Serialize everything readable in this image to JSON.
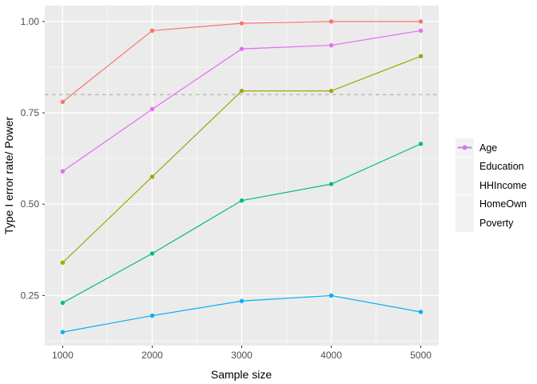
{
  "chart_data": {
    "type": "line",
    "title": "",
    "xlabel": "Sample size",
    "ylabel": "Type I error rate/ Power",
    "x": [
      1000,
      2000,
      3000,
      4000,
      5000
    ],
    "x_tick_labels": [
      "1000",
      "2000",
      "3000",
      "4000",
      "5000"
    ],
    "x_minor_ticks": [
      1500,
      2500,
      3500,
      4500
    ],
    "y_ticks": [
      0.25,
      0.5,
      0.75,
      1.0
    ],
    "y_tick_labels": [
      "0.25",
      "0.50",
      "0.75",
      "1.00"
    ],
    "y_minor_ticks": [
      0.125,
      0.375,
      0.625,
      0.875
    ],
    "xlim": [
      800,
      5200
    ],
    "ylim": [
      0.113,
      1.0435
    ],
    "grid": true,
    "legend_position": "right",
    "reference_line": {
      "y": 0.8,
      "style": "dashed",
      "color": "#A8A8A8"
    },
    "series": [
      {
        "name": "Age",
        "color": "#F8766D",
        "values": [
          0.78,
          0.975,
          0.995,
          1.0,
          1.0
        ]
      },
      {
        "name": "Education",
        "color": "#A3A500",
        "values": [
          0.34,
          0.575,
          0.81,
          0.81,
          0.905
        ]
      },
      {
        "name": "HHIncome",
        "color": "#00BF7D",
        "values": [
          0.23,
          0.365,
          0.51,
          0.555,
          0.665
        ]
      },
      {
        "name": "HomeOwn",
        "color": "#00B0F6",
        "values": [
          0.15,
          0.195,
          0.235,
          0.25,
          0.205
        ]
      },
      {
        "name": "Poverty",
        "color": "#E76BF3",
        "values": [
          0.59,
          0.76,
          0.925,
          0.935,
          0.975
        ]
      }
    ],
    "colors": {
      "panel_bg": "#EBEBEB",
      "grid": "#FFFFFF",
      "axis_text": "#4D4D4D",
      "axis_title": "#000000",
      "tick_mark": "#333333",
      "legend_key_bg": "#F2F2F2"
    }
  }
}
